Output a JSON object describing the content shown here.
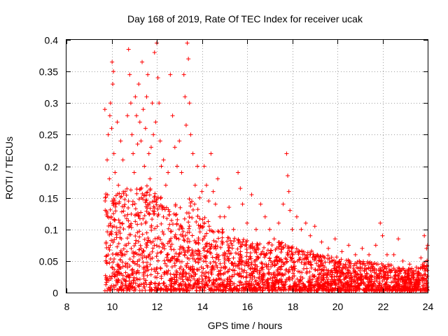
{
  "chart_data": {
    "type": "scatter",
    "title": "Day 168 of 2019, Rate Of TEC Index for receiver ucak",
    "xlabel": "GPS time / hours",
    "ylabel": "ROTI / TECUs",
    "xlim": [
      8,
      24
    ],
    "ylim": [
      0,
      0.4
    ],
    "xticks": [
      8,
      10,
      12,
      14,
      16,
      18,
      20,
      22,
      24
    ],
    "xtick_labels": [
      "8",
      "10",
      "12",
      "14",
      "16",
      "18",
      "20",
      "22",
      "24"
    ],
    "yticks": [
      0,
      0.05,
      0.1,
      0.15,
      0.2,
      0.25,
      0.3,
      0.35,
      0.4
    ],
    "ytick_labels": [
      "0",
      "0.05",
      "0.1",
      "0.15",
      "0.2",
      "0.25",
      "0.3",
      "0.35",
      "0.4"
    ],
    "grid": true,
    "marker": "+",
    "color": "#ff0000",
    "series": [
      {
        "name": "ROTI",
        "points": [
          [
            9.7,
            0.29
          ],
          [
            9.8,
            0.21
          ],
          [
            9.85,
            0.25
          ],
          [
            9.9,
            0.18
          ],
          [
            9.92,
            0.28
          ],
          [
            9.95,
            0.3
          ],
          [
            9.98,
            0.12
          ],
          [
            10.0,
            0.26
          ],
          [
            10.02,
            0.365
          ],
          [
            10.05,
            0.33
          ],
          [
            10.08,
            0.35
          ],
          [
            10.1,
            0.22
          ],
          [
            10.15,
            0.19
          ],
          [
            10.2,
            0.14
          ],
          [
            10.25,
            0.27
          ],
          [
            10.3,
            0.17
          ],
          [
            10.4,
            0.24
          ],
          [
            10.5,
            0.21
          ],
          [
            10.6,
            0.16
          ],
          [
            10.7,
            0.28
          ],
          [
            10.75,
            0.385
          ],
          [
            10.8,
            0.345
          ],
          [
            10.85,
            0.3
          ],
          [
            10.9,
            0.25
          ],
          [
            10.95,
            0.22
          ],
          [
            11.0,
            0.19
          ],
          [
            11.05,
            0.31
          ],
          [
            11.1,
            0.28
          ],
          [
            11.15,
            0.235
          ],
          [
            11.2,
            0.33
          ],
          [
            11.25,
            0.27
          ],
          [
            11.3,
            0.24
          ],
          [
            11.35,
            0.365
          ],
          [
            11.4,
            0.29
          ],
          [
            11.45,
            0.2
          ],
          [
            11.5,
            0.26
          ],
          [
            11.55,
            0.31
          ],
          [
            11.6,
            0.345
          ],
          [
            11.65,
            0.22
          ],
          [
            11.7,
            0.18
          ],
          [
            11.75,
            0.23
          ],
          [
            11.8,
            0.3
          ],
          [
            11.85,
            0.25
          ],
          [
            11.9,
            0.38
          ],
          [
            11.95,
            0.27
          ],
          [
            12.0,
            0.395
          ],
          [
            12.05,
            0.34
          ],
          [
            12.1,
            0.3
          ],
          [
            12.15,
            0.24
          ],
          [
            12.2,
            0.2
          ],
          [
            12.3,
            0.21
          ],
          [
            12.4,
            0.17
          ],
          [
            12.5,
            0.19
          ],
          [
            12.6,
            0.345
          ],
          [
            12.7,
            0.28
          ],
          [
            12.8,
            0.23
          ],
          [
            12.9,
            0.2
          ],
          [
            13.0,
            0.24
          ],
          [
            13.1,
            0.19
          ],
          [
            13.2,
            0.345
          ],
          [
            13.25,
            0.31
          ],
          [
            13.3,
            0.265
          ],
          [
            13.35,
            0.395
          ],
          [
            13.4,
            0.37
          ],
          [
            13.45,
            0.3
          ],
          [
            13.5,
            0.25
          ],
          [
            13.6,
            0.22
          ],
          [
            13.7,
            0.17
          ],
          [
            13.8,
            0.2
          ],
          [
            13.9,
            0.15
          ],
          [
            14.0,
            0.16
          ],
          [
            14.1,
            0.2
          ],
          [
            14.2,
            0.17
          ],
          [
            14.3,
            0.145
          ],
          [
            14.4,
            0.22
          ],
          [
            14.5,
            0.16
          ],
          [
            14.6,
            0.14
          ],
          [
            14.7,
            0.18
          ],
          [
            14.8,
            0.12
          ],
          [
            14.9,
            0.1
          ],
          [
            15.0,
            0.12
          ],
          [
            15.2,
            0.135
          ],
          [
            15.4,
            0.1
          ],
          [
            15.6,
            0.19
          ],
          [
            15.7,
            0.165
          ],
          [
            15.8,
            0.14
          ],
          [
            16.0,
            0.11
          ],
          [
            16.2,
            0.155
          ],
          [
            16.4,
            0.1
          ],
          [
            16.6,
            0.14
          ],
          [
            16.8,
            0.12
          ],
          [
            17.0,
            0.1
          ],
          [
            17.2,
            0.085
          ],
          [
            17.4,
            0.11
          ],
          [
            17.6,
            0.14
          ],
          [
            17.75,
            0.22
          ],
          [
            17.8,
            0.185
          ],
          [
            17.85,
            0.16
          ],
          [
            17.9,
            0.13
          ],
          [
            18.0,
            0.1
          ],
          [
            18.2,
            0.12
          ],
          [
            18.4,
            0.1
          ],
          [
            18.6,
            0.11
          ],
          [
            18.8,
            0.09
          ],
          [
            19.0,
            0.105
          ],
          [
            19.3,
            0.08
          ],
          [
            19.6,
            0.07
          ],
          [
            19.9,
            0.085
          ],
          [
            20.2,
            0.065
          ],
          [
            20.5,
            0.075
          ],
          [
            20.8,
            0.06
          ],
          [
            21.1,
            0.07
          ],
          [
            21.4,
            0.06
          ],
          [
            21.7,
            0.075
          ],
          [
            21.9,
            0.11
          ],
          [
            22.0,
            0.09
          ],
          [
            22.2,
            0.06
          ],
          [
            22.5,
            0.06
          ],
          [
            22.7,
            0.085
          ],
          [
            22.9,
            0.05
          ],
          [
            23.2,
            0.045
          ],
          [
            23.5,
            0.04
          ],
          [
            23.7,
            0.055
          ],
          [
            23.85,
            0.09
          ],
          [
            23.95,
            0.07
          ],
          [
            24.0,
            0.075
          ]
        ],
        "cloud": {
          "description": "dense band of points near the baseline, decaying with time",
          "x_start": 9.7,
          "x_end": 24.0,
          "y_min": 0.003,
          "envelope": [
            [
              9.7,
              0.16
            ],
            [
              10.5,
              0.16
            ],
            [
              11.5,
              0.17
            ],
            [
              12.5,
              0.14
            ],
            [
              13.5,
              0.15
            ],
            [
              14.5,
              0.1
            ],
            [
              15.5,
              0.085
            ],
            [
              16.5,
              0.075
            ],
            [
              17.5,
              0.08
            ],
            [
              18.5,
              0.065
            ],
            [
              19.5,
              0.06
            ],
            [
              20.5,
              0.05
            ],
            [
              21.5,
              0.045
            ],
            [
              22.5,
              0.04
            ],
            [
              23.5,
              0.035
            ],
            [
              24.0,
              0.05
            ]
          ],
          "count": 2600
        }
      }
    ]
  }
}
